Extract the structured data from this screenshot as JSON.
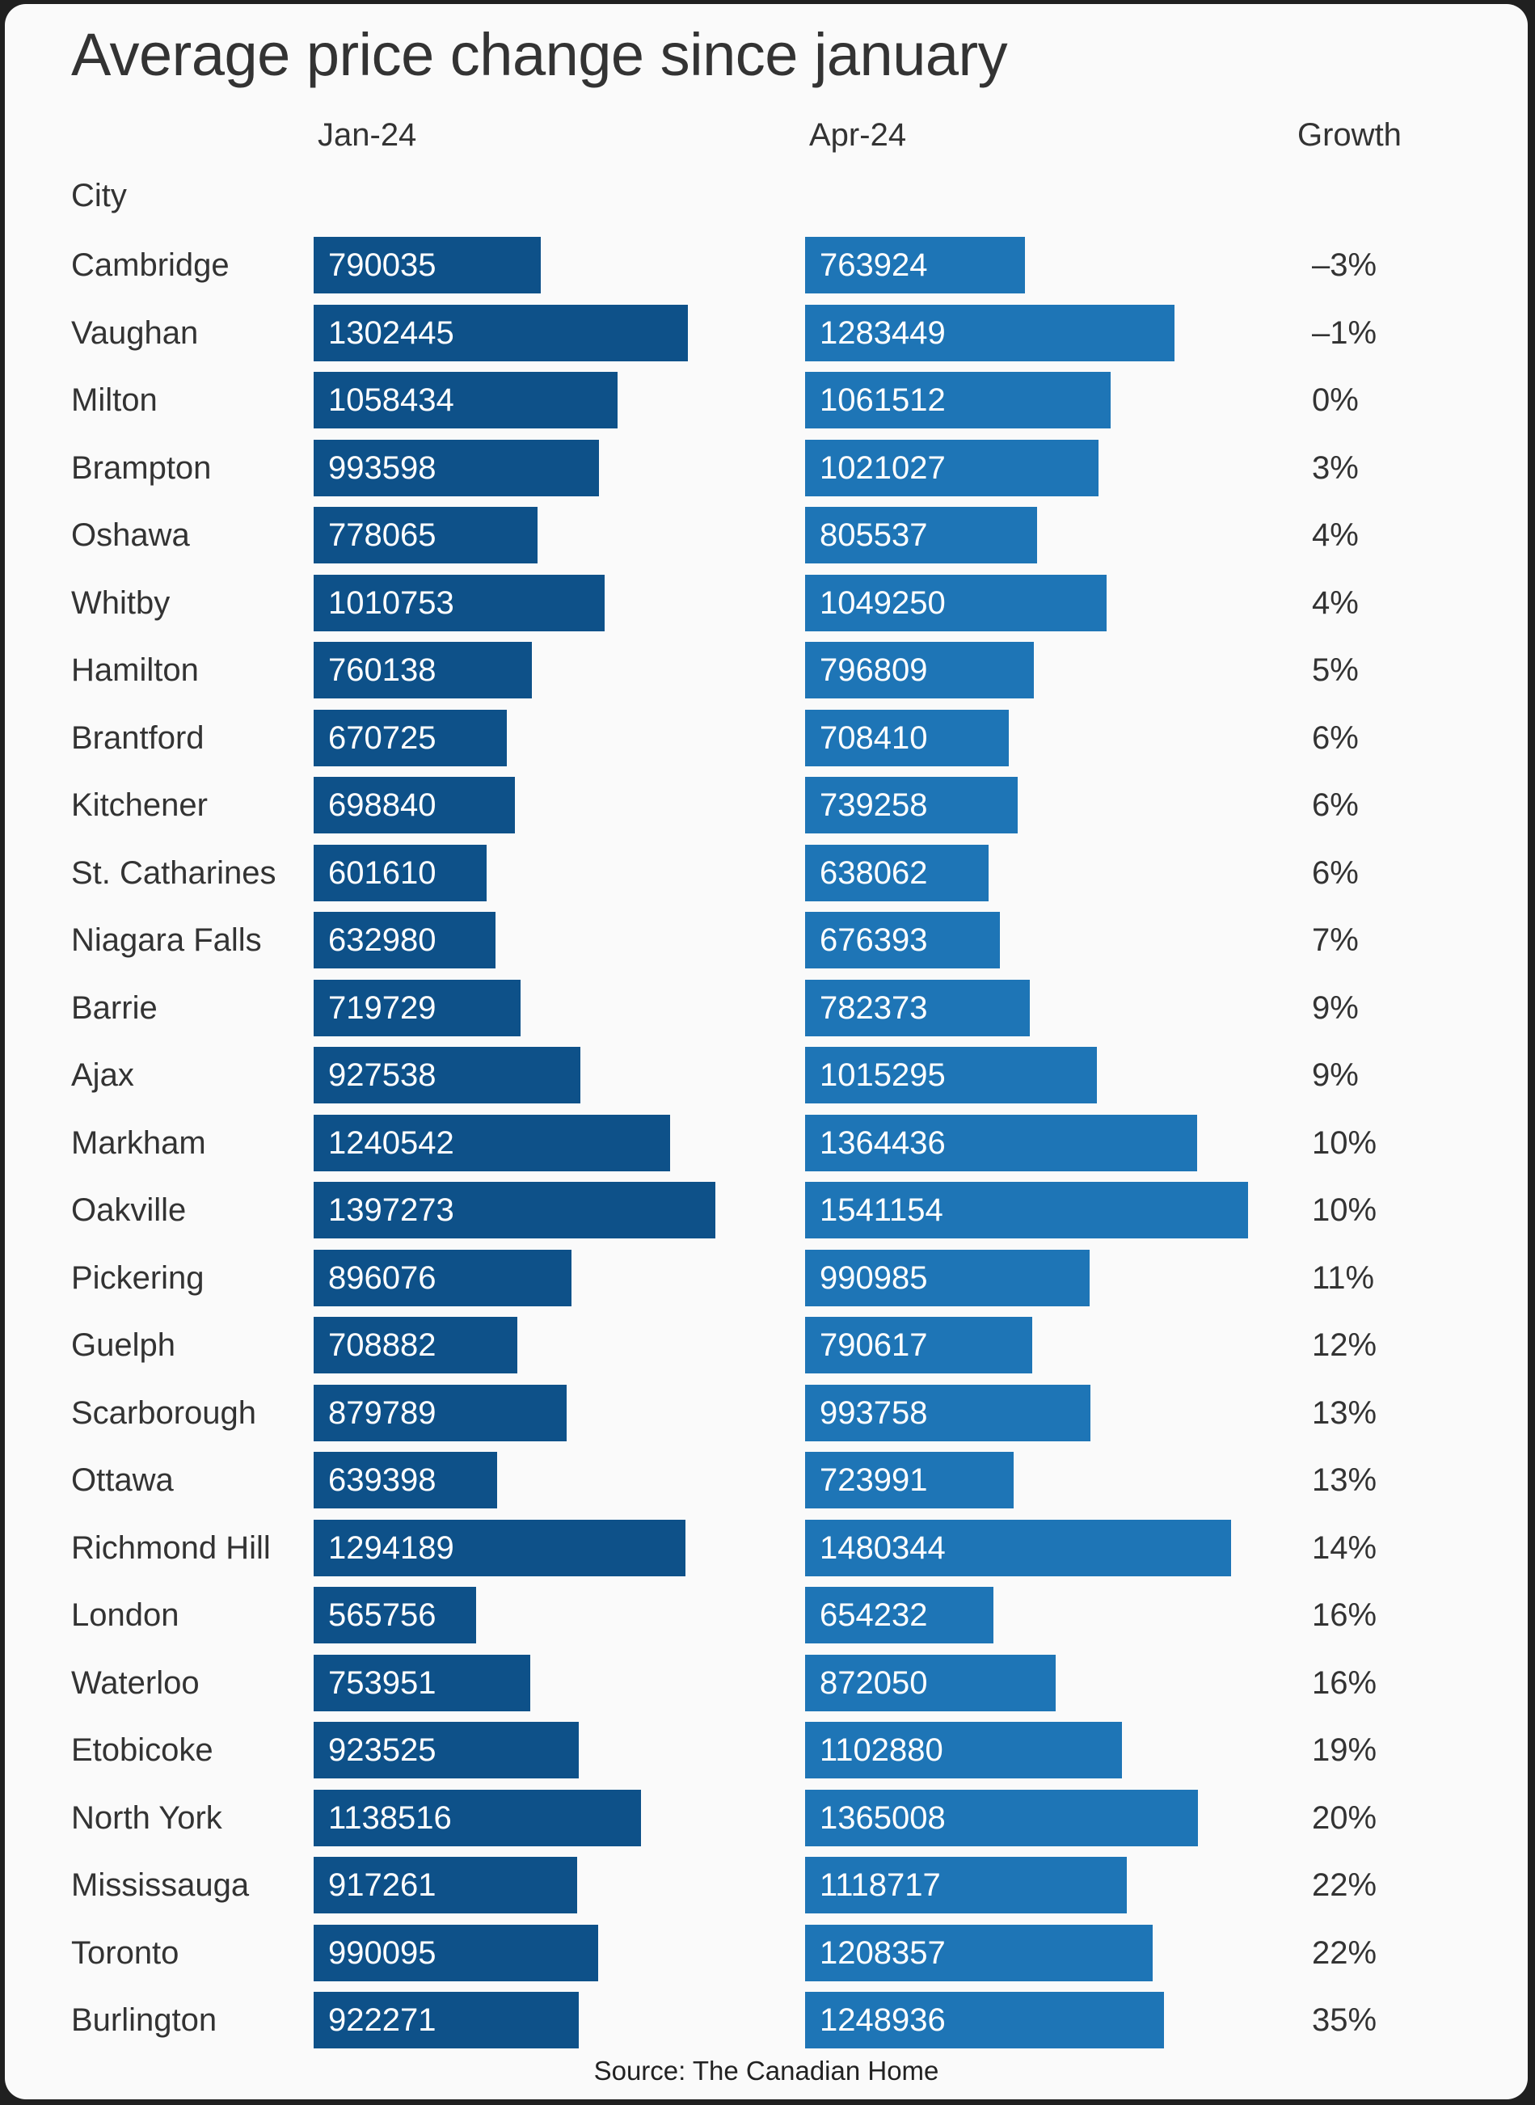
{
  "chart_data": {
    "type": "bar",
    "title": "Average price change since january",
    "row_header": "City",
    "columns": {
      "jan": "Jan-24",
      "apr": "Apr-24",
      "growth": "Growth"
    },
    "rows": [
      {
        "city": "Cambridge",
        "jan": "790035",
        "apr": "763924",
        "growth": "–3%"
      },
      {
        "city": "Vaughan",
        "jan": "1302445",
        "apr": "1283449",
        "growth": "–1%"
      },
      {
        "city": "Milton",
        "jan": "1058434",
        "apr": "1061512",
        "growth": "0%"
      },
      {
        "city": "Brampton",
        "jan": "993598",
        "apr": "1021027",
        "growth": "3%"
      },
      {
        "city": "Oshawa",
        "jan": "778065",
        "apr": "805537",
        "growth": "4%"
      },
      {
        "city": "Whitby",
        "jan": "1010753",
        "apr": "1049250",
        "growth": "4%"
      },
      {
        "city": "Hamilton",
        "jan": "760138",
        "apr": "796809",
        "growth": "5%"
      },
      {
        "city": "Brantford",
        "jan": "670725",
        "apr": "708410",
        "growth": "6%"
      },
      {
        "city": "Kitchener",
        "jan": "698840",
        "apr": "739258",
        "growth": "6%"
      },
      {
        "city": "St. Catharines",
        "jan": "601610",
        "apr": "638062",
        "growth": "6%"
      },
      {
        "city": "Niagara Falls",
        "jan": "632980",
        "apr": "676393",
        "growth": "7%"
      },
      {
        "city": "Barrie",
        "jan": "719729",
        "apr": "782373",
        "growth": "9%"
      },
      {
        "city": "Ajax",
        "jan": "927538",
        "apr": "1015295",
        "growth": "9%"
      },
      {
        "city": "Markham",
        "jan": "1240542",
        "apr": "1364436",
        "growth": "10%"
      },
      {
        "city": "Oakville",
        "jan": "1397273",
        "apr": "1541154",
        "growth": "10%"
      },
      {
        "city": "Pickering",
        "jan": "896076",
        "apr": "990985",
        "growth": "11%"
      },
      {
        "city": "Guelph",
        "jan": "708882",
        "apr": "790617",
        "growth": "12%"
      },
      {
        "city": "Scarborough",
        "jan": "879789",
        "apr": "993758",
        "growth": "13%"
      },
      {
        "city": "Ottawa",
        "jan": "639398",
        "apr": "723991",
        "growth": "13%"
      },
      {
        "city": "Richmond Hill",
        "jan": "1294189",
        "apr": "1480344",
        "growth": "14%"
      },
      {
        "city": "London",
        "jan": "565756",
        "apr": "654232",
        "growth": "16%"
      },
      {
        "city": "Waterloo",
        "jan": "753951",
        "apr": "872050",
        "growth": "16%"
      },
      {
        "city": "Etobicoke",
        "jan": "923525",
        "apr": "1102880",
        "growth": "19%"
      },
      {
        "city": "North York",
        "jan": "1138516",
        "apr": "1365008",
        "growth": "20%"
      },
      {
        "city": "Mississauga",
        "jan": "917261",
        "apr": "1118717",
        "growth": "22%"
      },
      {
        "city": "Toronto",
        "jan": "990095",
        "apr": "1208357",
        "growth": "22%"
      },
      {
        "city": "Burlington",
        "jan": "922271",
        "apr": "1248936",
        "growth": "35%"
      }
    ],
    "colors": {
      "jan": "#0e5189",
      "apr": "#1e75b6"
    },
    "source": "Source: The Canadian Home"
  }
}
